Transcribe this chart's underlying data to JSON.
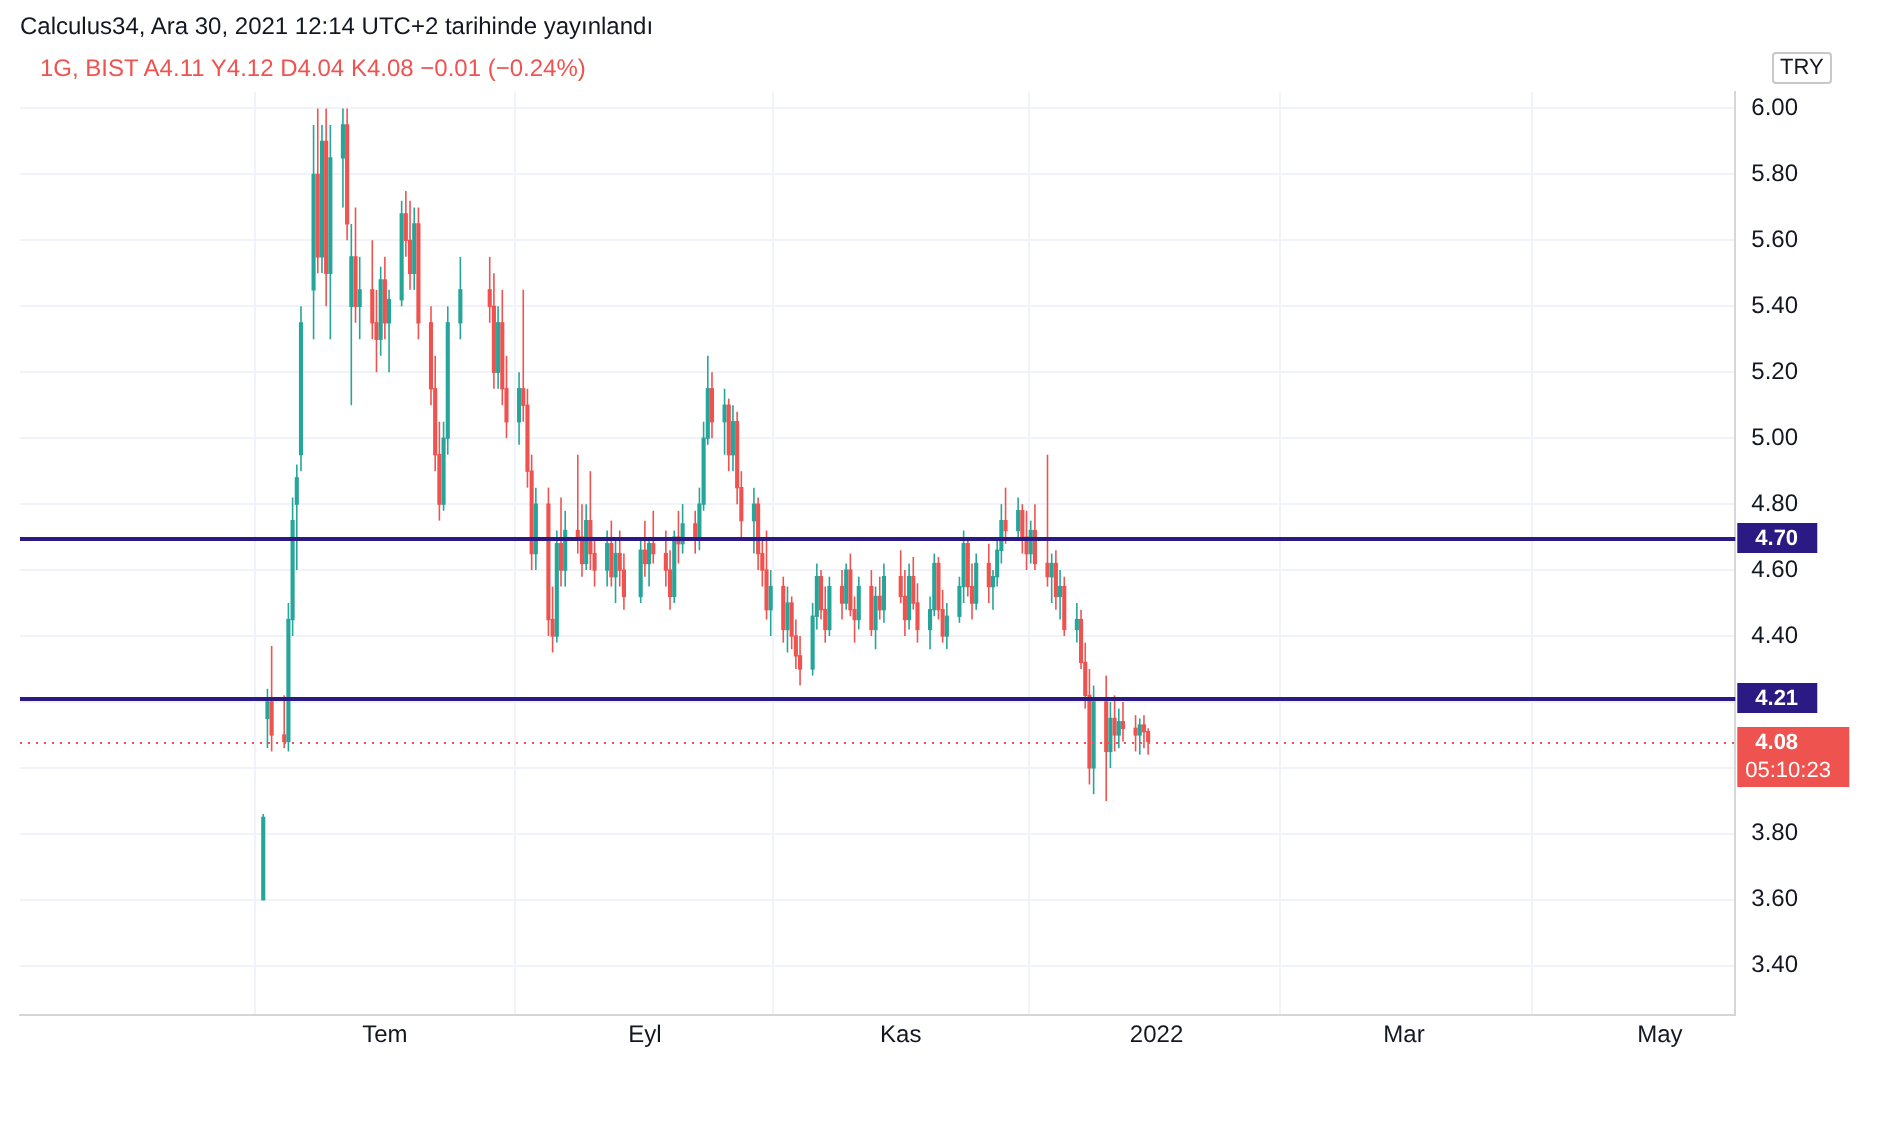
{
  "chart_data": {
    "type": "candlestick",
    "title": "1G, BIST  A4.11 Y4.12 D4.04 K4.08 −0.01 (−0.24%)",
    "annotations": [
      "Calculus34, Ara 30, 2021 12:14 UTC+2 tarihinde yayınlandı",
      "TRY",
      "05:10:23"
    ],
    "x": [
      "2021-06-02",
      "2021-06-03",
      "2021-06-04",
      "2021-06-07",
      "2021-06-08",
      "2021-06-09",
      "2021-06-10",
      "2021-06-11",
      "2021-06-14",
      "2021-06-15",
      "2021-06-16",
      "2021-06-17",
      "2021-06-18",
      "2021-06-21",
      "2021-06-22",
      "2021-06-23",
      "2021-06-24",
      "2021-06-25",
      "2021-06-28",
      "2021-06-29",
      "2021-06-30",
      "2021-07-01",
      "2021-07-02",
      "2021-07-05",
      "2021-07-06",
      "2021-07-07",
      "2021-07-08",
      "2021-07-09",
      "2021-07-12",
      "2021-07-13",
      "2021-07-14",
      "2021-07-15",
      "2021-07-16",
      "2021-07-19",
      "2021-07-26",
      "2021-07-27",
      "2021-07-28",
      "2021-07-29",
      "2021-07-30",
      "2021-08-02",
      "2021-08-03",
      "2021-08-04",
      "2021-08-05",
      "2021-08-06",
      "2021-08-09",
      "2021-08-10",
      "2021-08-11",
      "2021-08-12",
      "2021-08-13",
      "2021-08-16",
      "2021-08-17",
      "2021-08-18",
      "2021-08-19",
      "2021-08-20",
      "2021-08-23",
      "2021-08-24",
      "2021-08-25",
      "2021-08-26",
      "2021-08-27",
      "2021-08-31",
      "2021-09-01",
      "2021-09-02",
      "2021-09-03",
      "2021-09-06",
      "2021-09-07",
      "2021-09-08",
      "2021-09-09",
      "2021-09-10",
      "2021-09-13",
      "2021-09-14",
      "2021-09-15",
      "2021-09-16",
      "2021-09-17",
      "2021-09-20",
      "2021-09-21",
      "2021-09-22",
      "2021-09-23",
      "2021-09-24",
      "2021-09-27",
      "2021-09-28",
      "2021-09-29",
      "2021-09-30",
      "2021-10-01",
      "2021-10-04",
      "2021-10-05",
      "2021-10-06",
      "2021-10-07",
      "2021-10-08",
      "2021-10-11",
      "2021-10-12",
      "2021-10-13",
      "2021-10-14",
      "2021-10-15",
      "2021-10-18",
      "2021-10-19",
      "2021-10-20",
      "2021-10-21",
      "2021-10-22",
      "2021-10-25",
      "2021-10-26",
      "2021-10-27",
      "2021-10-28",
      "2021-11-01",
      "2021-11-02",
      "2021-11-03",
      "2021-11-04",
      "2021-11-05",
      "2021-11-08",
      "2021-11-09",
      "2021-11-10",
      "2021-11-11",
      "2021-11-12",
      "2021-11-15",
      "2021-11-16",
      "2021-11-17",
      "2021-11-18",
      "2021-11-19",
      "2021-11-22",
      "2021-11-23",
      "2021-11-24",
      "2021-11-25",
      "2021-11-26",
      "2021-11-29",
      "2021-11-30",
      "2021-12-01",
      "2021-12-02",
      "2021-12-03",
      "2021-12-06",
      "2021-12-07",
      "2021-12-08",
      "2021-12-09",
      "2021-12-10",
      "2021-12-13",
      "2021-12-14",
      "2021-12-15",
      "2021-12-16",
      "2021-12-17",
      "2021-12-20",
      "2021-12-21",
      "2021-12-22",
      "2021-12-23",
      "2021-12-24",
      "2021-12-27",
      "2021-12-28",
      "2021-12-29",
      "2021-12-30"
    ],
    "ohlc": [
      [
        3.6,
        3.86,
        3.6,
        3.85
      ],
      [
        4.15,
        4.24,
        4.06,
        4.2
      ],
      [
        4.2,
        4.37,
        4.05,
        4.1
      ],
      [
        4.1,
        4.22,
        4.06,
        4.08
      ],
      [
        4.08,
        4.5,
        4.05,
        4.45
      ],
      [
        4.45,
        4.82,
        4.4,
        4.75
      ],
      [
        4.8,
        4.92,
        4.6,
        4.88
      ],
      [
        4.95,
        5.4,
        4.9,
        5.35
      ],
      [
        5.45,
        5.95,
        5.3,
        5.8
      ],
      [
        5.8,
        6.0,
        5.5,
        5.55
      ],
      [
        5.55,
        5.95,
        5.5,
        5.9
      ],
      [
        5.9,
        6.0,
        5.4,
        5.5
      ],
      [
        5.5,
        5.95,
        5.3,
        5.85
      ],
      [
        5.85,
        6.0,
        5.7,
        5.95
      ],
      [
        5.95,
        6.0,
        5.6,
        5.65
      ],
      [
        5.4,
        5.65,
        5.1,
        5.55
      ],
      [
        5.55,
        5.7,
        5.35,
        5.4
      ],
      [
        5.4,
        5.55,
        5.3,
        5.45
      ],
      [
        5.45,
        5.6,
        5.3,
        5.35
      ],
      [
        5.35,
        5.45,
        5.2,
        5.3
      ],
      [
        5.3,
        5.52,
        5.25,
        5.48
      ],
      [
        5.48,
        5.55,
        5.3,
        5.35
      ],
      [
        5.35,
        5.45,
        5.2,
        5.42
      ],
      [
        5.42,
        5.72,
        5.4,
        5.68
      ],
      [
        5.68,
        5.75,
        5.55,
        5.6
      ],
      [
        5.6,
        5.72,
        5.45,
        5.5
      ],
      [
        5.5,
        5.7,
        5.45,
        5.65
      ],
      [
        5.65,
        5.7,
        5.3,
        5.35
      ],
      [
        5.35,
        5.4,
        5.1,
        5.15
      ],
      [
        5.15,
        5.25,
        4.9,
        4.95
      ],
      [
        4.95,
        5.05,
        4.75,
        4.8
      ],
      [
        4.8,
        5.05,
        4.78,
        5.0
      ],
      [
        5.0,
        5.4,
        4.95,
        5.35
      ],
      [
        5.35,
        5.55,
        5.3,
        5.45
      ],
      [
        5.45,
        5.55,
        5.35,
        5.4
      ],
      [
        5.4,
        5.5,
        5.15,
        5.2
      ],
      [
        5.2,
        5.4,
        5.15,
        5.35
      ],
      [
        5.35,
        5.45,
        5.1,
        5.15
      ],
      [
        5.15,
        5.25,
        5.0,
        5.05
      ],
      [
        5.05,
        5.2,
        4.98,
        5.15
      ],
      [
        5.15,
        5.45,
        5.05,
        5.1
      ],
      [
        5.1,
        5.15,
        4.85,
        4.9
      ],
      [
        4.9,
        4.95,
        4.6,
        4.65
      ],
      [
        4.65,
        4.85,
        4.6,
        4.8
      ],
      [
        4.8,
        4.85,
        4.4,
        4.45
      ],
      [
        4.45,
        4.55,
        4.35,
        4.4
      ],
      [
        4.4,
        4.72,
        4.38,
        4.68
      ],
      [
        4.68,
        4.82,
        4.55,
        4.6
      ],
      [
        4.6,
        4.78,
        4.55,
        4.72
      ],
      [
        4.72,
        4.95,
        4.65,
        4.7
      ],
      [
        4.7,
        4.8,
        4.58,
        4.62
      ],
      [
        4.62,
        4.8,
        4.6,
        4.75
      ],
      [
        4.75,
        4.9,
        4.6,
        4.65
      ],
      [
        4.65,
        4.7,
        4.55,
        4.6
      ],
      [
        4.6,
        4.72,
        4.55,
        4.68
      ],
      [
        4.68,
        4.75,
        4.55,
        4.58
      ],
      [
        4.58,
        4.7,
        4.5,
        4.65
      ],
      [
        4.65,
        4.72,
        4.55,
        4.6
      ],
      [
        4.6,
        4.65,
        4.48,
        4.52
      ],
      [
        4.52,
        4.7,
        4.5,
        4.66
      ],
      [
        4.66,
        4.75,
        4.58,
        4.62
      ],
      [
        4.62,
        4.7,
        4.55,
        4.68
      ],
      [
        4.68,
        4.78,
        4.62,
        4.65
      ],
      [
        4.65,
        4.72,
        4.55,
        4.6
      ],
      [
        4.6,
        4.66,
        4.48,
        4.52
      ],
      [
        4.52,
        4.72,
        4.5,
        4.7
      ],
      [
        4.7,
        4.78,
        4.62,
        4.68
      ],
      [
        4.68,
        4.8,
        4.65,
        4.74
      ],
      [
        4.74,
        4.78,
        4.65,
        4.7
      ],
      [
        4.7,
        4.85,
        4.66,
        4.8
      ],
      [
        4.8,
        5.05,
        4.78,
        5.0
      ],
      [
        5.0,
        5.25,
        4.98,
        5.15
      ],
      [
        5.15,
        5.2,
        5.0,
        5.05
      ],
      [
        5.05,
        5.15,
        4.95,
        5.1
      ],
      [
        5.1,
        5.12,
        4.9,
        4.95
      ],
      [
        4.95,
        5.1,
        4.9,
        5.05
      ],
      [
        5.05,
        5.08,
        4.8,
        4.85
      ],
      [
        4.85,
        4.9,
        4.7,
        4.75
      ],
      [
        4.75,
        4.85,
        4.65,
        4.8
      ],
      [
        4.8,
        4.82,
        4.6,
        4.65
      ],
      [
        4.65,
        4.7,
        4.55,
        4.6
      ],
      [
        4.6,
        4.72,
        4.45,
        4.48
      ],
      [
        4.48,
        4.6,
        4.4,
        4.55
      ],
      [
        4.55,
        4.58,
        4.38,
        4.42
      ],
      [
        4.42,
        4.55,
        4.35,
        4.5
      ],
      [
        4.5,
        4.52,
        4.36,
        4.4
      ],
      [
        4.4,
        4.45,
        4.3,
        4.34
      ],
      [
        4.34,
        4.4,
        4.25,
        4.3
      ],
      [
        4.3,
        4.5,
        4.28,
        4.46
      ],
      [
        4.46,
        4.62,
        4.42,
        4.58
      ],
      [
        4.58,
        4.6,
        4.45,
        4.48
      ],
      [
        4.48,
        4.55,
        4.38,
        4.42
      ],
      [
        4.42,
        4.58,
        4.4,
        4.55
      ],
      [
        4.55,
        4.6,
        4.45,
        4.5
      ],
      [
        4.5,
        4.62,
        4.48,
        4.6
      ],
      [
        4.6,
        4.65,
        4.46,
        4.48
      ],
      [
        4.48,
        4.52,
        4.38,
        4.45
      ],
      [
        4.45,
        4.58,
        4.42,
        4.55
      ],
      [
        4.55,
        4.6,
        4.4,
        4.42
      ],
      [
        4.42,
        4.55,
        4.36,
        4.52
      ],
      [
        4.52,
        4.58,
        4.45,
        4.48
      ],
      [
        4.48,
        4.62,
        4.44,
        4.58
      ],
      [
        4.58,
        4.66,
        4.5,
        4.52
      ],
      [
        4.52,
        4.6,
        4.4,
        4.45
      ],
      [
        4.45,
        4.62,
        4.42,
        4.58
      ],
      [
        4.58,
        4.64,
        4.48,
        4.5
      ],
      [
        4.5,
        4.56,
        4.38,
        4.42
      ],
      [
        4.42,
        4.52,
        4.36,
        4.48
      ],
      [
        4.48,
        4.65,
        4.46,
        4.62
      ],
      [
        4.62,
        4.64,
        4.45,
        4.48
      ],
      [
        4.48,
        4.54,
        4.38,
        4.4
      ],
      [
        4.4,
        4.5,
        4.36,
        4.46
      ],
      [
        4.46,
        4.58,
        4.44,
        4.55
      ],
      [
        4.55,
        4.72,
        4.5,
        4.68
      ],
      [
        4.68,
        4.7,
        4.52,
        4.55
      ],
      [
        4.55,
        4.62,
        4.45,
        4.5
      ],
      [
        4.5,
        4.65,
        4.48,
        4.62
      ],
      [
        4.62,
        4.68,
        4.5,
        4.55
      ],
      [
        4.55,
        4.6,
        4.48,
        4.58
      ],
      [
        4.58,
        4.7,
        4.55,
        4.66
      ],
      [
        4.66,
        4.8,
        4.62,
        4.75
      ],
      [
        4.75,
        4.85,
        4.68,
        4.72
      ],
      [
        4.72,
        4.82,
        4.7,
        4.78
      ],
      [
        4.78,
        4.8,
        4.65,
        4.7
      ],
      [
        4.7,
        4.78,
        4.6,
        4.65
      ],
      [
        4.65,
        4.75,
        4.62,
        4.72
      ],
      [
        4.72,
        4.8,
        4.6,
        4.62
      ],
      [
        4.62,
        4.95,
        4.55,
        4.58
      ],
      [
        4.58,
        4.65,
        4.5,
        4.62
      ],
      [
        4.62,
        4.66,
        4.48,
        4.52
      ],
      [
        4.52,
        4.6,
        4.45,
        4.55
      ],
      [
        4.55,
        4.58,
        4.4,
        4.42
      ],
      [
        4.42,
        4.5,
        4.38,
        4.45
      ],
      [
        4.45,
        4.48,
        4.3,
        4.32
      ],
      [
        4.32,
        4.38,
        4.18,
        4.22
      ],
      [
        4.22,
        4.3,
        3.95,
        4.0
      ],
      [
        4.0,
        4.25,
        3.92,
        4.2
      ],
      [
        4.2,
        4.28,
        3.9,
        4.05
      ],
      [
        4.05,
        4.2,
        4.0,
        4.15
      ],
      [
        4.15,
        4.22,
        4.05,
        4.1
      ],
      [
        4.1,
        4.18,
        4.06,
        4.14
      ],
      [
        4.14,
        4.2,
        4.08,
        4.12
      ],
      [
        4.12,
        4.16,
        4.05,
        4.1
      ],
      [
        4.1,
        4.15,
        4.04,
        4.13
      ],
      [
        4.13,
        4.16,
        4.06,
        4.11
      ],
      [
        4.11,
        4.12,
        4.04,
        4.08
      ]
    ],
    "colors": [
      "#26a69a",
      "#26a69a",
      "#ef5350",
      "#ef5350",
      "#26a69a",
      "#26a69a",
      "#26a69a",
      "#26a69a",
      "#26a69a",
      "#ef5350",
      "#26a69a",
      "#ef5350",
      "#26a69a",
      "#26a69a",
      "#ef5350",
      "#26a69a",
      "#ef5350",
      "#26a69a",
      "#ef5350",
      "#ef5350",
      "#26a69a",
      "#ef5350",
      "#26a69a",
      "#26a69a",
      "#ef5350",
      "#ef5350",
      "#26a69a",
      "#ef5350",
      "#ef5350",
      "#ef5350",
      "#ef5350",
      "#26a69a",
      "#26a69a",
      "#26a69a",
      "#ef5350",
      "#ef5350",
      "#26a69a",
      "#ef5350",
      "#ef5350",
      "#26a69a",
      "#ef5350",
      "#ef5350",
      "#ef5350",
      "#26a69a",
      "#ef5350",
      "#ef5350",
      "#26a69a",
      "#ef5350",
      "#26a69a",
      "#ef5350",
      "#ef5350",
      "#26a69a",
      "#ef5350",
      "#ef5350",
      "#26a69a",
      "#ef5350",
      "#26a69a",
      "#ef5350",
      "#ef5350",
      "#26a69a",
      "#ef5350",
      "#26a69a",
      "#ef5350",
      "#ef5350",
      "#ef5350",
      "#26a69a",
      "#ef5350",
      "#26a69a",
      "#ef5350",
      "#26a69a",
      "#26a69a",
      "#26a69a",
      "#ef5350",
      "#26a69a",
      "#ef5350",
      "#26a69a",
      "#ef5350",
      "#ef5350",
      "#26a69a",
      "#ef5350",
      "#ef5350",
      "#ef5350",
      "#26a69a",
      "#ef5350",
      "#26a69a",
      "#ef5350",
      "#ef5350",
      "#ef5350",
      "#26a69a",
      "#26a69a",
      "#ef5350",
      "#ef5350",
      "#26a69a",
      "#ef5350",
      "#26a69a",
      "#ef5350",
      "#ef5350",
      "#26a69a",
      "#ef5350",
      "#26a69a",
      "#ef5350",
      "#26a69a",
      "#ef5350",
      "#ef5350",
      "#26a69a",
      "#ef5350",
      "#ef5350",
      "#26a69a",
      "#26a69a",
      "#ef5350",
      "#ef5350",
      "#26a69a",
      "#26a69a",
      "#26a69a",
      "#ef5350",
      "#ef5350",
      "#26a69a",
      "#ef5350",
      "#26a69a",
      "#26a69a",
      "#26a69a",
      "#ef5350",
      "#26a69a",
      "#ef5350",
      "#ef5350",
      "#26a69a",
      "#ef5350",
      "#ef5350",
      "#26a69a",
      "#ef5350",
      "#26a69a",
      "#ef5350",
      "#26a69a",
      "#ef5350",
      "#ef5350",
      "#ef5350",
      "#26a69a",
      "#ef5350",
      "#26a69a",
      "#ef5350",
      "#26a69a",
      "#ef5350",
      "#ef5350",
      "#26a69a",
      "#ef5350",
      "#ef5350"
    ],
    "xlim": [
      "2021-04-05",
      "2022-05-19"
    ],
    "xticks": [
      {
        "value": "2021-07-01",
        "label": "Tem"
      },
      {
        "value": "2021-09-01",
        "label": "Eyl"
      },
      {
        "value": "2021-11-01",
        "label": "Kas"
      },
      {
        "value": "2022-01-01",
        "label": "2022"
      },
      {
        "value": "2022-03-01",
        "label": "Mar"
      },
      {
        "value": "2022-05-01",
        "label": "May"
      }
    ],
    "ylim": [
      3.25,
      6.05
    ],
    "yticks": [
      {
        "value": 3.4,
        "label": "3.40"
      },
      {
        "value": 3.6,
        "label": "3.60"
      },
      {
        "value": 3.8,
        "label": "3.80"
      },
      {
        "value": 4.0,
        "label": null
      },
      {
        "value": 4.2,
        "label": null
      },
      {
        "value": 4.4,
        "label": "4.40"
      },
      {
        "value": 4.6,
        "label": "4.60"
      },
      {
        "value": 4.8,
        "label": "4.80"
      },
      {
        "value": 5.0,
        "label": "5.00"
      },
      {
        "value": 5.2,
        "label": "5.20"
      },
      {
        "value": 5.4,
        "label": "5.40"
      },
      {
        "value": 5.6,
        "label": "5.60"
      },
      {
        "value": 5.8,
        "label": "5.80"
      },
      {
        "value": 6.0,
        "label": "6.00"
      }
    ],
    "ref_lines": [
      {
        "axis": "y",
        "value": 4.7,
        "label": "4.70",
        "color": "#2b1a84"
      },
      {
        "axis": "y",
        "value": 4.21,
        "label": "4.21",
        "color": "#2b1a84"
      },
      {
        "axis": "y",
        "value": 4.08,
        "label": "4.08",
        "color": "#ef5350",
        "line_style": "dotted"
      }
    ],
    "grid": true
  }
}
